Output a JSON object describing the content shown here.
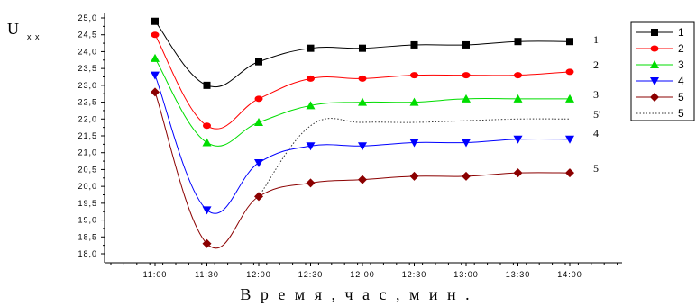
{
  "chart_data": {
    "type": "line",
    "ylabel": "U",
    "ylabel_sub": "x x",
    "xlabel": "В р е м я ,  ч а с ,  м и н .",
    "categories": [
      "11:00",
      "11:30",
      "12:00",
      "12:30",
      "12:00",
      "12:30",
      "13:00",
      "13:30",
      "14:00"
    ],
    "ylim": [
      17.8,
      25.2
    ],
    "yticks": [
      "25,0",
      "24,5",
      "24,0",
      "23,5",
      "23,0",
      "22,5",
      "22,0",
      "21,5",
      "21,0",
      "20,5",
      "20,0",
      "19,5",
      "19,0",
      "18,5",
      "18,0"
    ],
    "grid": false,
    "legend_position": "top-right",
    "series": [
      {
        "name": "1",
        "marker": "square",
        "color": "#000000",
        "curve_label": "1",
        "values": [
          24.9,
          23.0,
          23.7,
          24.1,
          24.1,
          24.2,
          24.2,
          24.3,
          24.3
        ]
      },
      {
        "name": "2",
        "marker": "circle",
        "color": "#ff0000",
        "curve_label": "2",
        "values": [
          24.5,
          21.8,
          22.6,
          23.2,
          23.2,
          23.3,
          23.3,
          23.3,
          23.4
        ]
      },
      {
        "name": "3",
        "marker": "triangle-up",
        "color": "#00dd00",
        "curve_label": "3",
        "values": [
          23.8,
          21.3,
          21.9,
          22.4,
          22.5,
          22.5,
          22.6,
          22.6,
          22.6
        ]
      },
      {
        "name": "4",
        "marker": "triangle-down",
        "color": "#0000ff",
        "curve_label": "4",
        "values": [
          23.3,
          19.3,
          20.7,
          21.2,
          21.2,
          21.3,
          21.3,
          21.4,
          21.4
        ]
      },
      {
        "name": "5",
        "marker": "diamond",
        "color": "#8b0000",
        "curve_label": "5",
        "values": [
          22.8,
          18.3,
          19.7,
          20.1,
          20.2,
          20.3,
          20.3,
          20.4,
          20.4
        ]
      },
      {
        "name": "5",
        "marker": "none",
        "color": "#333333",
        "dashed": true,
        "curve_label": "5'",
        "values": [
          null,
          null,
          19.7,
          21.8,
          21.9,
          21.9,
          21.95,
          22.0,
          22.0
        ]
      }
    ]
  }
}
